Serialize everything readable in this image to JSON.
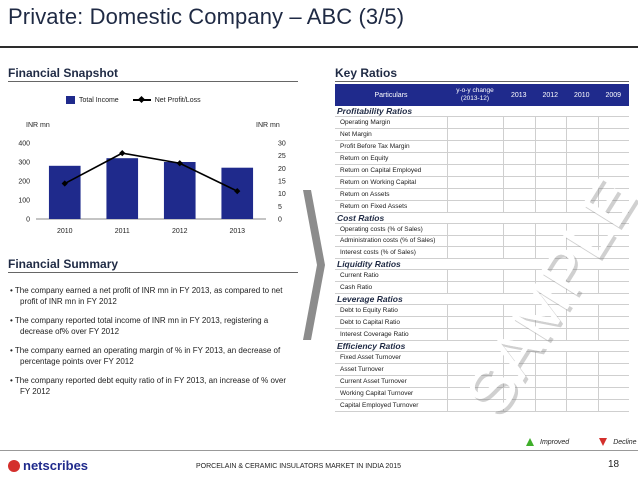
{
  "title": "Private: Domestic Company – ABC (3/5)",
  "sections": {
    "snapshot": "Financial Snapshot",
    "summary": "Financial Summary",
    "ratios": "Key Ratios"
  },
  "chart_legend": {
    "bar": "Total Income",
    "line": "Net Profit/Loss"
  },
  "chart_units": {
    "left": "INR mn",
    "right": "INR mn"
  },
  "chart_data": {
    "type": "bar",
    "categories": [
      "2010",
      "2011",
      "2012",
      "2013"
    ],
    "series": [
      {
        "name": "Total Income",
        "type": "bar",
        "axis": "left",
        "values": [
          280,
          320,
          300,
          270
        ]
      },
      {
        "name": "Net Profit/Loss",
        "type": "line",
        "axis": "right",
        "values": [
          14,
          26,
          22,
          11
        ]
      }
    ],
    "ylim": [
      0,
      400
    ],
    "yticks": [
      0,
      100,
      200,
      300,
      400
    ],
    "y2lim": [
      0,
      30
    ],
    "y2ticks": [
      0,
      5,
      10,
      15,
      20,
      25,
      30
    ],
    "colors": {
      "bar": "#1f2a8c",
      "line": "#000000"
    }
  },
  "summary_bullets": [
    "• The company earned a net profit of INR mn in FY 2013, as compared to net profit of INR mn in FY 2012",
    "• The company reported total income of INR mn in FY 2013, registering a decrease of% over FY 2012",
    "• The company earned an operating margin of % in FY 2013, an decrease of percentage points over FY 2012",
    "• The company reported debt equity ratio of in FY 2013, an increase of % over FY 2012"
  ],
  "table": {
    "headers": [
      "Particulars",
      "y-o-y change (2013-12)",
      "2013",
      "2012",
      "2010",
      "2009"
    ],
    "groups": [
      {
        "name": "Profitability Ratios",
        "rows": [
          "Operating Margin",
          "Net Margin",
          "Profit Before Tax Margin",
          "Return on Equity",
          "Return on Capital Employed",
          "Return on Working Capital",
          "Return on Assets",
          "Return on Fixed Assets"
        ]
      },
      {
        "name": "Cost Ratios",
        "rows": [
          "Operating costs (% of Sales)",
          "Administration costs (% of Sales)",
          "Interest costs (% of Sales)"
        ]
      },
      {
        "name": "Liquidity Ratios",
        "rows": [
          "Current Ratio",
          "Cash Ratio"
        ]
      },
      {
        "name": "Leverage Ratios",
        "rows": [
          "Debt to Equity Ratio",
          "Debt to Capital Ratio",
          "Interest Coverage Ratio"
        ]
      },
      {
        "name": "Efficiency Ratios",
        "rows": [
          "Fixed Asset Turnover",
          "Asset Turnover",
          "Current Asset Turnover",
          "Working Capital Turnover",
          "Capital Employed Turnover"
        ]
      }
    ]
  },
  "watermark": "SAMPLE",
  "key_legend": {
    "improved": "Improved",
    "decline": "Decline"
  },
  "footer": {
    "logo": "netscribes",
    "text": "PORCELAIN & CERAMIC INSULATORS MARKET IN INDIA 2015",
    "page": "18"
  }
}
